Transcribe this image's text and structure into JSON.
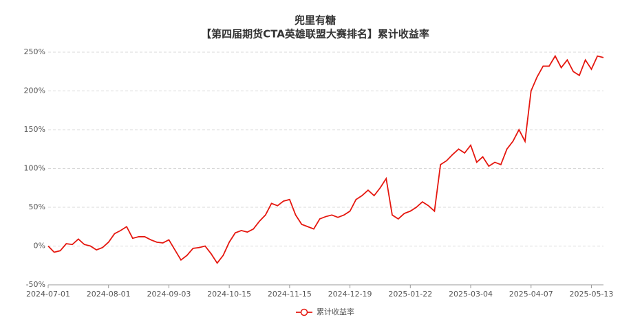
{
  "chart_data": {
    "type": "line",
    "title": "兜里有糖",
    "subtitle": "【第四届期货CTA英雄联盟大赛排名】累计收益率",
    "categories": [
      "2024-07-01",
      null,
      null,
      null,
      null,
      null,
      null,
      null,
      null,
      null,
      "2024-08-01",
      null,
      null,
      null,
      null,
      null,
      null,
      null,
      null,
      null,
      "2024-09-03",
      null,
      null,
      null,
      null,
      null,
      null,
      null,
      null,
      null,
      "2024-10-15",
      null,
      null,
      null,
      null,
      null,
      null,
      null,
      null,
      null,
      "2024-11-15",
      null,
      null,
      null,
      null,
      null,
      null,
      null,
      null,
      null,
      "2024-12-19",
      null,
      null,
      null,
      null,
      null,
      null,
      null,
      null,
      null,
      "2025-01-22",
      null,
      null,
      null,
      null,
      null,
      null,
      null,
      null,
      null,
      "2025-03-04",
      null,
      null,
      null,
      null,
      null,
      null,
      null,
      null,
      null,
      "2025-04-07",
      null,
      null,
      null,
      null,
      null,
      null,
      null,
      null,
      null,
      "2025-05-13",
      null,
      null
    ],
    "series": [
      {
        "name": "累计收益率",
        "color": "#e5170f",
        "values": [
          0,
          -8,
          -6,
          3,
          2,
          9,
          2,
          0,
          -5,
          -2,
          5,
          16,
          20,
          25,
          10,
          12,
          12,
          8,
          5,
          4,
          8,
          -5,
          -18,
          -12,
          -3,
          -2,
          0,
          -10,
          -22,
          -12,
          5,
          17,
          20,
          18,
          22,
          32,
          40,
          55,
          52,
          58,
          60,
          40,
          28,
          25,
          22,
          35,
          38,
          40,
          37,
          40,
          45,
          60,
          65,
          72,
          65,
          75,
          87,
          40,
          35,
          42,
          45,
          50,
          57,
          52,
          45,
          105,
          110,
          118,
          125,
          120,
          130,
          108,
          115,
          103,
          108,
          105,
          125,
          135,
          150,
          135,
          200,
          218,
          232,
          232,
          245,
          230,
          240,
          225,
          220,
          240,
          228,
          245,
          243
        ]
      }
    ],
    "ylim": [
      -50,
      250
    ],
    "yticks": [
      {
        "value": -50,
        "label": "-50%"
      },
      {
        "value": 0,
        "label": "0%"
      },
      {
        "value": 50,
        "label": "50%"
      },
      {
        "value": 100,
        "label": "100%"
      },
      {
        "value": 150,
        "label": "150%"
      },
      {
        "value": 200,
        "label": "200%"
      },
      {
        "value": 250,
        "label": "250%"
      }
    ],
    "grid": true
  }
}
